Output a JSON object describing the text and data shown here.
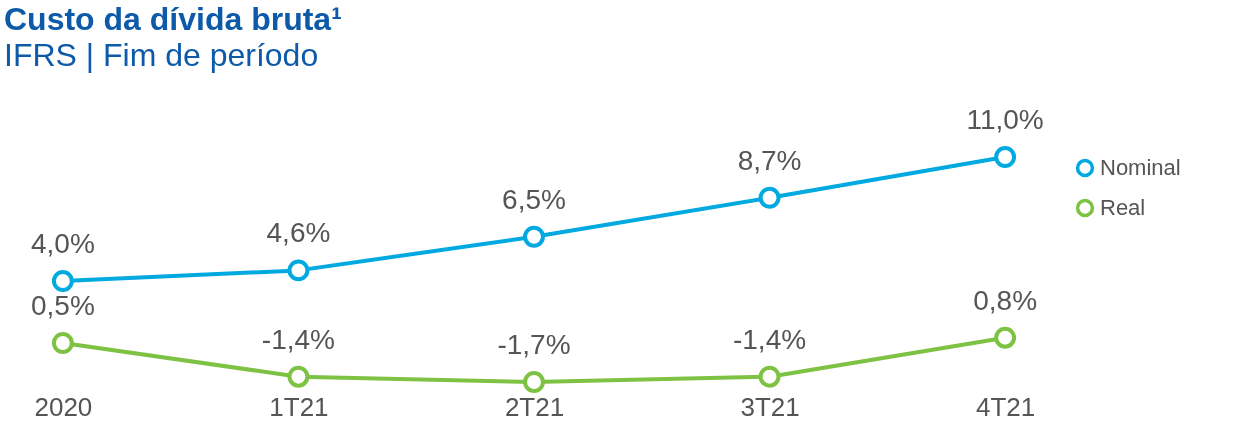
{
  "chart_data": {
    "type": "line",
    "title": "Custo da dívida bruta¹",
    "subtitle": "IFRS | Fim de período",
    "categories": [
      "2020",
      "1T21",
      "2T21",
      "3T21",
      "4T21"
    ],
    "series": [
      {
        "name": "Nominal",
        "color": "#00a9e0",
        "values": [
          4.0,
          4.6,
          6.5,
          8.7,
          11.0
        ],
        "value_labels": [
          "4,0%",
          "4,6%",
          "6,5%",
          "8,7%",
          "11,0%"
        ]
      },
      {
        "name": "Real",
        "color": "#7dc242",
        "values": [
          0.5,
          -1.4,
          -1.7,
          -1.4,
          0.8
        ],
        "value_labels": [
          "0,5%",
          "-1,4%",
          "-1,7%",
          "-1,4%",
          "0,8%"
        ]
      }
    ],
    "legend": "right",
    "marker": "circle",
    "line_style": "solid",
    "grid": false
  }
}
